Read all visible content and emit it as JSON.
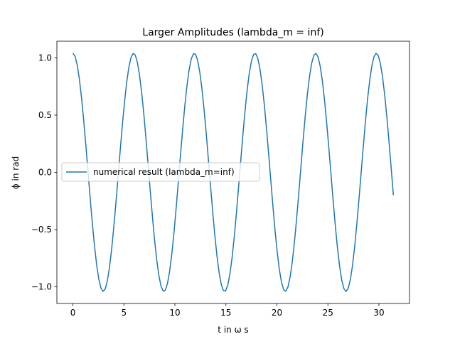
{
  "chart_data": {
    "type": "line",
    "title": "Larger Amplitudes (lambda_m = inf)",
    "xlabel": "t in ω s",
    "ylabel": "ϕ in rad",
    "xlim": [
      -1.57,
      33.0
    ],
    "ylim": [
      -1.145,
      1.145
    ],
    "xticks": [
      0,
      5,
      10,
      15,
      20,
      25,
      30
    ],
    "yticks": [
      -1.0,
      -0.5,
      0.0,
      0.5,
      1.0
    ],
    "xtick_labels": [
      "0",
      "5",
      "10",
      "15",
      "20",
      "25",
      "30"
    ],
    "ytick_labels": [
      "−1.0",
      "−0.5",
      "0.0",
      "0.5",
      "1.0"
    ],
    "grid": false,
    "legend_position": "center-left",
    "series": [
      {
        "name": "numerical result (lambda_m=inf)",
        "color": "#1f77b4",
        "amplitude": 1.04,
        "period": 5.95,
        "t_start": 0.0,
        "t_end": 31.42,
        "points": 150
      }
    ]
  }
}
